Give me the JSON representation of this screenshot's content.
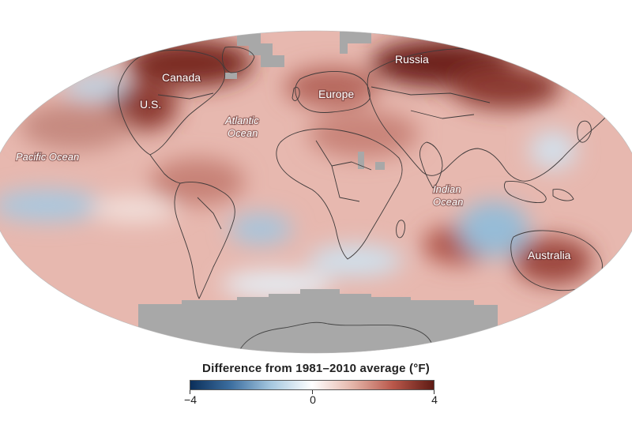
{
  "map": {
    "projection": "Mollweide",
    "region_labels": {
      "canada": "Canada",
      "us": "U.S.",
      "russia": "Russia",
      "europe": "Europe",
      "australia": "Australia"
    },
    "ocean_labels": {
      "pacific": "Pacific Ocean",
      "atlantic_line1": "Atlantic",
      "atlantic_line2": "Ocean",
      "indian_line1": "Indian",
      "indian_line2": "Ocean"
    },
    "colors": {
      "no_data": "#a8a8a8",
      "base_warm": "#e6b3ab",
      "strong_warm": "#7a2a22",
      "cool": "#9fc3dc"
    }
  },
  "legend": {
    "title": "Difference from 1981–2010 average (°F)",
    "min": -4,
    "max": 4,
    "ticks": [
      "−4",
      "0",
      "4"
    ],
    "colors": [
      "#0b2f5a",
      "#3d6fa0",
      "#a6c8e0",
      "#ffffff",
      "#e4b5a9",
      "#b9574a",
      "#5e1b14"
    ]
  }
}
